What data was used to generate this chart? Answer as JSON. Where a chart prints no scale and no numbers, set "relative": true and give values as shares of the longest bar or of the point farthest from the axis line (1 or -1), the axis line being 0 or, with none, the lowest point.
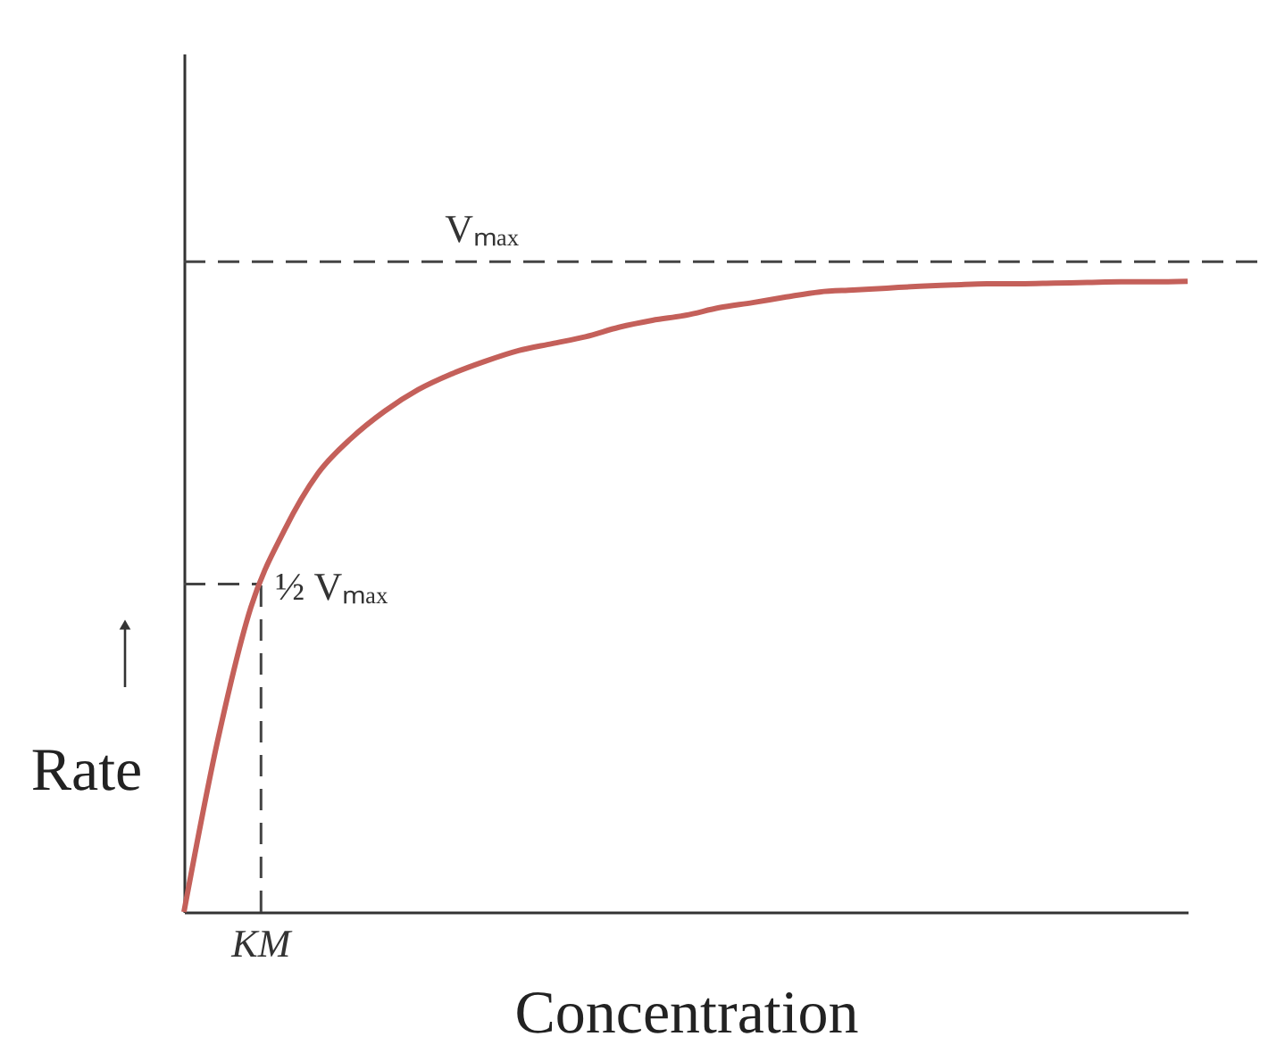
{
  "chart_data": {
    "type": "line",
    "relative": true,
    "xlabel": "Concentration",
    "ylabel": "Rate",
    "annotations": [
      "KM"
    ],
    "categories": [
      null,
      null,
      null,
      null,
      null,
      null,
      null,
      null,
      null,
      null,
      null,
      null,
      null,
      null,
      null,
      null,
      null,
      null,
      null,
      null,
      null,
      null,
      null,
      null,
      null,
      null,
      null,
      null,
      null,
      null,
      null
    ],
    "series": [
      {
        "color": "#c4605a",
        "values": [
          0,
          0.27,
          0.483,
          0.605,
          0.695,
          0.751,
          0.794,
          0.828,
          0.853,
          0.873,
          0.89,
          0.901,
          0.912,
          0.927,
          0.938,
          0.946,
          0.958,
          0.966,
          0.975,
          0.983,
          0.986,
          0.989,
          0.992,
          0.994,
          0.996,
          0.996,
          0.997,
          0.998,
          0.999,
          0.999,
          1.0
        ]
      }
    ],
    "ref_lines": [
      {
        "axis": "y",
        "value": 1.031,
        "label": "Vₘₐₓ",
        "color": "#444444",
        "line_style": "dashed"
      },
      {
        "axis": "y",
        "value": 0.52,
        "label": "½ Vₘₐₓ",
        "color": "#444444",
        "line_style": "dashed"
      }
    ]
  }
}
